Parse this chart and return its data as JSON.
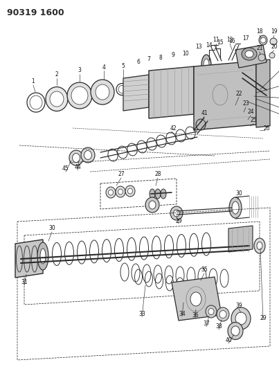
{
  "title": "90319 1600",
  "bg_color": "#ffffff",
  "lc": "#2a2a2a",
  "figsize": [
    4.03,
    5.33
  ],
  "dpi": 100
}
